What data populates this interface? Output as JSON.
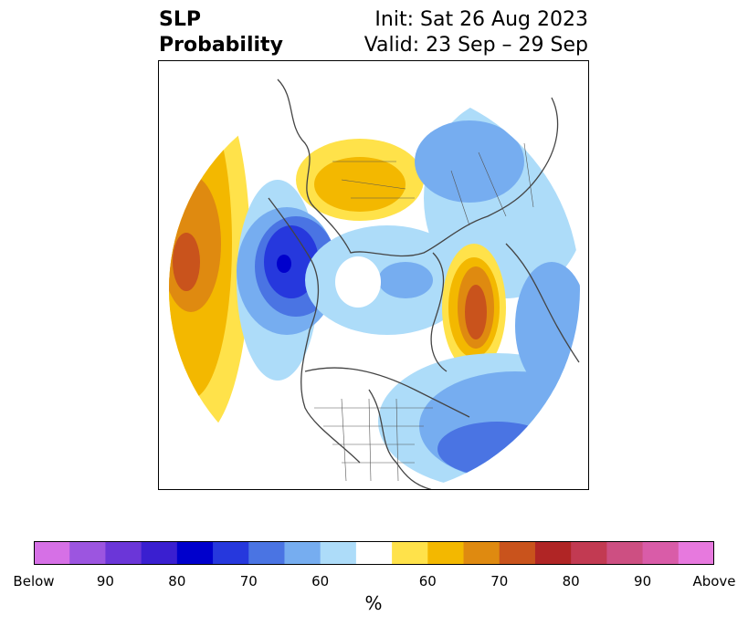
{
  "title": {
    "variable_line1": "SLP",
    "variable_line2": "Probability",
    "init": "Init: Sat 26 Aug 2023",
    "valid": "Valid: 23 Sep – 29 Sep"
  },
  "colorbar": {
    "colors": [
      "#d670e6",
      "#9c55e0",
      "#6b36d8",
      "#3a1fd0",
      "#0000cc",
      "#2638dd",
      "#4a74e3",
      "#76adf0",
      "#addcf9",
      "#ffffff",
      "#ffe24a",
      "#f3b800",
      "#df8a10",
      "#c9531c",
      "#b02525",
      "#c23a52",
      "#cd4f82",
      "#d95ca8",
      "#e779de"
    ],
    "tick_labels": [
      "Below",
      "90",
      "80",
      "70",
      "60",
      "60",
      "70",
      "80",
      "90",
      "Above"
    ],
    "unit": "%"
  }
}
